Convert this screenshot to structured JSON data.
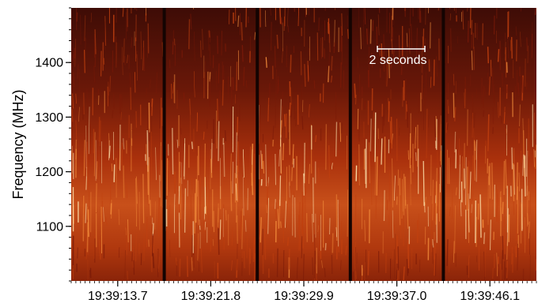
{
  "chart_data": {
    "type": "heatmap",
    "title": "",
    "xlabel": "",
    "ylabel": "Frequency (MHz)",
    "ylim": [
      1000,
      1500
    ],
    "y_ticks": [
      {
        "value": 1100,
        "label": "1100"
      },
      {
        "value": 1200,
        "label": "1200"
      },
      {
        "value": 1300,
        "label": "1300"
      },
      {
        "value": 1400,
        "label": "1400"
      }
    ],
    "x_ticks": [
      "19:39:13.7",
      "19:39:21.8",
      "19:39:29.9",
      "19:39:37.0",
      "19:39:46.1"
    ],
    "panels": 5,
    "scale_bar": {
      "label": "2 seconds",
      "duration_s": 2
    },
    "brightest_band_mhz": [
      1050,
      1250
    ],
    "colormap": [
      "#3a0a05",
      "#7a1a08",
      "#c0400f",
      "#f08a3a",
      "#ffe6b0"
    ]
  }
}
